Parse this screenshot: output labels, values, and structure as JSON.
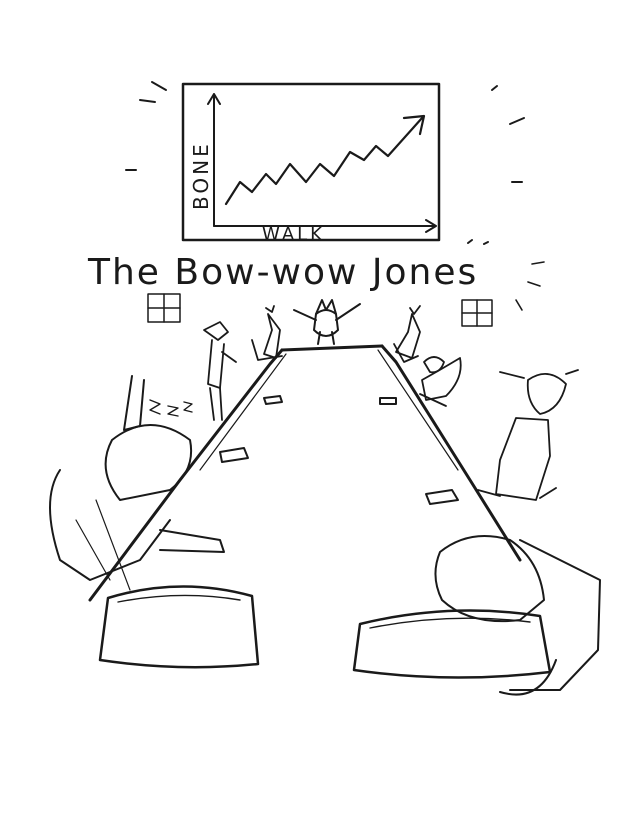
{
  "caption": "The Bow-wow Jones",
  "chart": {
    "ylabel": "BONE",
    "xlabel": "WALK",
    "trend": "rising"
  },
  "drawing": {
    "subject": "dog boardroom meeting",
    "ink_color": "#1a1a1a",
    "paper_color": "#ffffff"
  }
}
